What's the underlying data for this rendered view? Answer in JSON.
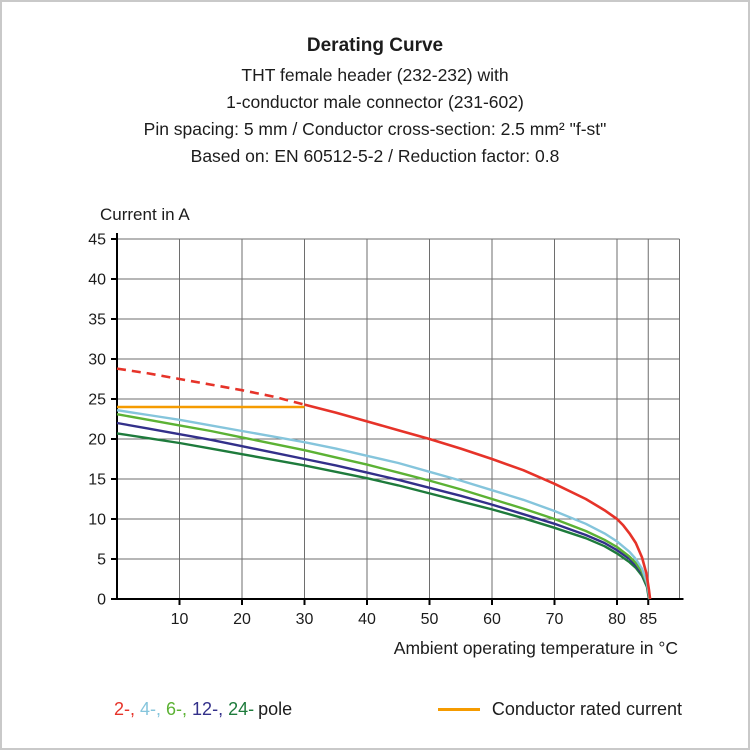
{
  "page": {
    "title": "Derating Curve",
    "subtitle_lines": [
      "THT female header (232-232) with",
      "1-conductor male connector (231-602)",
      "Pin spacing: 5 mm / Conductor cross-section: 2.5 mm² \"f-st\"",
      "Based on: EN 60512-5-2 / Reduction factor: 0.8"
    ]
  },
  "chart_data": {
    "type": "line",
    "title": "Derating Curve",
    "xlabel": "Ambient operating temperature in °C",
    "ylabel": "Current in A",
    "xlim": [
      0,
      90
    ],
    "ylim": [
      0,
      45
    ],
    "xticks": [
      10,
      20,
      30,
      40,
      50,
      60,
      70,
      80,
      85
    ],
    "yticks": [
      0,
      5,
      10,
      15,
      20,
      25,
      30,
      35,
      40,
      45
    ],
    "grid": true,
    "grid_color": "#6e6e6e",
    "axis_color": "#000000",
    "series": [
      {
        "name": "24-pole",
        "color": "#1e7b3c",
        "width": 2.4,
        "dash": false,
        "points": [
          [
            0,
            20.7
          ],
          [
            5,
            20.1
          ],
          [
            10,
            19.5
          ],
          [
            15,
            18.8
          ],
          [
            20,
            18.1
          ],
          [
            25,
            17.4
          ],
          [
            30,
            16.7
          ],
          [
            35,
            15.9
          ],
          [
            40,
            15.1
          ],
          [
            45,
            14.2
          ],
          [
            50,
            13.2
          ],
          [
            55,
            12.2
          ],
          [
            60,
            11.2
          ],
          [
            65,
            10.1
          ],
          [
            70,
            8.9
          ],
          [
            75,
            7.6
          ],
          [
            78,
            6.6
          ],
          [
            80,
            5.7
          ],
          [
            82,
            4.6
          ],
          [
            83,
            3.9
          ],
          [
            84,
            2.9
          ],
          [
            84.8,
            1.5
          ],
          [
            85.1,
            0
          ]
        ]
      },
      {
        "name": "12-pole",
        "color": "#33308a",
        "width": 2.4,
        "dash": false,
        "points": [
          [
            0,
            22
          ],
          [
            5,
            21.3
          ],
          [
            10,
            20.6
          ],
          [
            15,
            19.9
          ],
          [
            20,
            19.1
          ],
          [
            25,
            18.3
          ],
          [
            30,
            17.5
          ],
          [
            35,
            16.7
          ],
          [
            40,
            15.8
          ],
          [
            45,
            14.9
          ],
          [
            50,
            13.9
          ],
          [
            55,
            12.9
          ],
          [
            60,
            11.8
          ],
          [
            65,
            10.6
          ],
          [
            70,
            9.4
          ],
          [
            75,
            8
          ],
          [
            78,
            7
          ],
          [
            80,
            6.1
          ],
          [
            82,
            5
          ],
          [
            83,
            4.2
          ],
          [
            84,
            3.2
          ],
          [
            84.8,
            1.7
          ],
          [
            85.15,
            0
          ]
        ]
      },
      {
        "name": "6-pole",
        "color": "#5cb234",
        "width": 2.4,
        "dash": false,
        "points": [
          [
            0,
            23.1
          ],
          [
            5,
            22.4
          ],
          [
            10,
            21.7
          ],
          [
            15,
            21
          ],
          [
            20,
            20.2
          ],
          [
            25,
            19.4
          ],
          [
            30,
            18.6
          ],
          [
            35,
            17.7
          ],
          [
            40,
            16.8
          ],
          [
            45,
            15.8
          ],
          [
            50,
            14.8
          ],
          [
            55,
            13.7
          ],
          [
            60,
            12.5
          ],
          [
            65,
            11.3
          ],
          [
            70,
            10
          ],
          [
            75,
            8.5
          ],
          [
            78,
            7.4
          ],
          [
            80,
            6.5
          ],
          [
            82,
            5.3
          ],
          [
            83,
            4.5
          ],
          [
            84,
            3.4
          ],
          [
            84.8,
            1.8
          ],
          [
            85.2,
            0
          ]
        ]
      },
      {
        "name": "4-pole",
        "color": "#85c5dc",
        "width": 2.4,
        "dash": false,
        "points": [
          [
            0,
            23.6
          ],
          [
            5,
            23
          ],
          [
            10,
            22.4
          ],
          [
            15,
            21.7
          ],
          [
            20,
            21
          ],
          [
            25,
            20.3
          ],
          [
            30,
            19.6
          ],
          [
            35,
            18.8
          ],
          [
            40,
            17.9
          ],
          [
            45,
            17
          ],
          [
            50,
            15.9
          ],
          [
            55,
            14.8
          ],
          [
            60,
            13.6
          ],
          [
            65,
            12.4
          ],
          [
            70,
            11
          ],
          [
            75,
            9.4
          ],
          [
            78,
            8.2
          ],
          [
            80,
            7.2
          ],
          [
            82,
            5.9
          ],
          [
            83,
            5
          ],
          [
            84,
            3.8
          ],
          [
            84.8,
            2
          ],
          [
            85.25,
            0
          ]
        ]
      },
      {
        "name": "Conductor rated current",
        "color": "#f59b00",
        "width": 2.6,
        "dash": false,
        "points": [
          [
            0,
            24
          ],
          [
            30,
            24
          ]
        ]
      },
      {
        "name": "2-pole (above rated current)",
        "color": "#e63329",
        "width": 2.6,
        "dash": true,
        "points": [
          [
            0,
            28.8
          ],
          [
            5,
            28.2
          ],
          [
            10,
            27.5
          ],
          [
            15,
            26.8
          ],
          [
            20,
            26.1
          ],
          [
            25,
            25.3
          ],
          [
            30,
            24.3
          ]
        ]
      },
      {
        "name": "2-pole",
        "color": "#e63329",
        "width": 2.6,
        "dash": false,
        "points": [
          [
            30,
            24.3
          ],
          [
            35,
            23.3
          ],
          [
            40,
            22.2
          ],
          [
            45,
            21.1
          ],
          [
            50,
            20
          ],
          [
            55,
            18.8
          ],
          [
            60,
            17.5
          ],
          [
            65,
            16.1
          ],
          [
            70,
            14.4
          ],
          [
            75,
            12.5
          ],
          [
            78,
            11.1
          ],
          [
            80,
            10
          ],
          [
            81,
            9.2
          ],
          [
            82,
            8.2
          ],
          [
            83,
            7
          ],
          [
            84,
            5.2
          ],
          [
            84.7,
            3.2
          ],
          [
            85.1,
            1.2
          ],
          [
            85.3,
            0
          ]
        ]
      }
    ]
  },
  "legend": {
    "pole_items": [
      {
        "label": "2-, ",
        "color": "#e63329"
      },
      {
        "label": "4-, ",
        "color": "#85c5dc"
      },
      {
        "label": "6-, ",
        "color": "#5cb234"
      },
      {
        "label": "12-, ",
        "color": "#33308a"
      },
      {
        "label": "24-",
        "color": "#1e7b3c"
      }
    ],
    "pole_suffix": "pole",
    "rated_current_label": "Conductor rated current",
    "rated_current_color": "#f59b00"
  }
}
